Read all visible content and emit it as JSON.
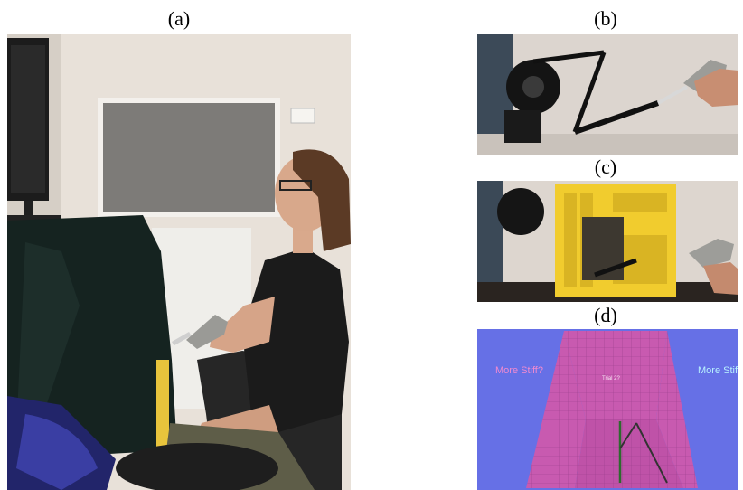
{
  "labels": {
    "a": "(a)",
    "b": "(b)",
    "c": "(c)",
    "d": "(d)"
  },
  "panel_d": {
    "left_prompt": "More Stiff?",
    "right_prompt": "More Stiff",
    "trial_text": "Trial 2?",
    "colors": {
      "background": "#6670e6",
      "wall": "#c85ab0",
      "left_prompt": "#f08ad0",
      "right_prompt": "#b8f2ff"
    }
  }
}
